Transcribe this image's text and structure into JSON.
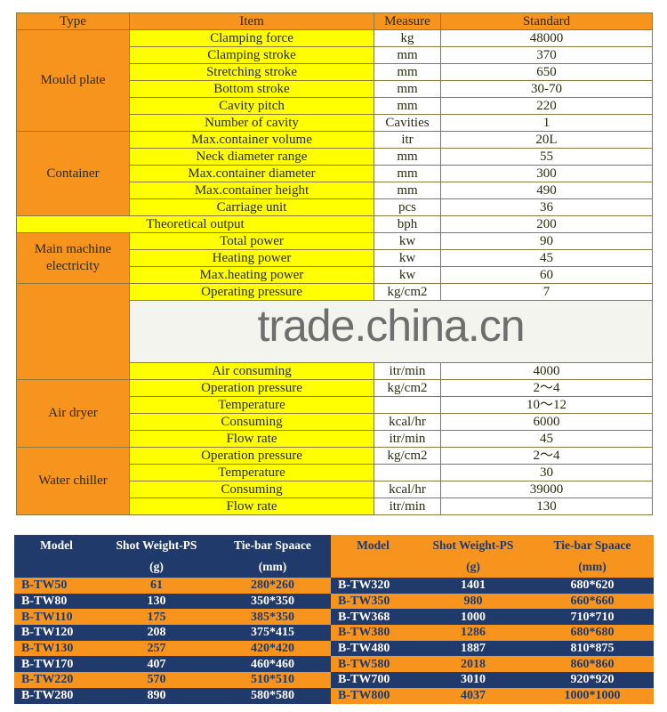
{
  "spec_table": {
    "headers": [
      "Type",
      "Item",
      "Measure",
      "Standard"
    ],
    "groups": [
      {
        "type": "Mould plate",
        "rows": [
          [
            "Clamping force",
            "kg",
            "48000"
          ],
          [
            "Clamping stroke",
            "mm",
            "370"
          ],
          [
            "Stretching stroke",
            "mm",
            "650"
          ],
          [
            "Bottom stroke",
            "mm",
            "30-70"
          ],
          [
            "Cavity pitch",
            "mm",
            "220"
          ],
          [
            "Number of cavity",
            "Cavities",
            "1"
          ]
        ]
      },
      {
        "type": "Container",
        "rows": [
          [
            "Max.container volume",
            "itr",
            "20L"
          ],
          [
            "Neck diameter range",
            "mm",
            "55"
          ],
          [
            "Max.container diameter",
            "mm",
            "300"
          ],
          [
            "Max.container height",
            "mm",
            "490"
          ],
          [
            "Carriage unit",
            "pcs",
            "36"
          ]
        ]
      },
      {
        "type": "",
        "full": true,
        "rows": [
          [
            "Theoretical output",
            "bph",
            "200"
          ]
        ]
      },
      {
        "type": "Main machine electricity",
        "rows": [
          [
            "Total power",
            "kw",
            "90"
          ],
          [
            "Heating power",
            "kw",
            "45"
          ],
          [
            "Max.heating power",
            "kw",
            "60"
          ]
        ]
      },
      {
        "type": "",
        "rows": [
          [
            "Operating pressure",
            "kg/cm2",
            "7"
          ],
          [
            "",
            "",
            ""
          ],
          [
            "Air consuming",
            "itr/min",
            "4000"
          ]
        ]
      },
      {
        "type": "Air dryer",
        "rows": [
          [
            "Operation pressure",
            "kg/cm2",
            "2～4"
          ],
          [
            "Temperature",
            "",
            "10～12"
          ],
          [
            "Consuming",
            "kcal/hr",
            "6000"
          ],
          [
            "Flow rate",
            "itr/min",
            "45"
          ]
        ]
      },
      {
        "type": "Water chiller",
        "rows": [
          [
            "Operation pressure",
            "kg/cm2",
            "2～4"
          ],
          [
            "Temperature",
            "",
            "30"
          ],
          [
            "Consuming",
            "kcal/hr",
            "39000"
          ],
          [
            "Flow rate",
            "itr/min",
            "130"
          ]
        ]
      }
    ]
  },
  "watermark": "trade.china.cn",
  "model_tables": {
    "headers": [
      [
        "Model",
        ""
      ],
      [
        "Shot Weight-PS",
        "(g)"
      ],
      [
        "Tie-bar Spaace",
        "(mm)"
      ]
    ],
    "left": [
      [
        "B-TW50",
        "61",
        "280*260"
      ],
      [
        "B-TW80",
        "130",
        "350*350"
      ],
      [
        "B-TW110",
        "175",
        "385*350"
      ],
      [
        "B-TW120",
        "208",
        "375*415"
      ],
      [
        "B-TW130",
        "257",
        "420*420"
      ],
      [
        "B-TW170",
        "407",
        "460*460"
      ],
      [
        "B-TW220",
        "570",
        "510*510"
      ],
      [
        "B-TW280",
        "890",
        "580*580"
      ]
    ],
    "right": [
      [
        "B-TW320",
        "1401",
        "680*620"
      ],
      [
        "B-TW350",
        "980",
        "660*660"
      ],
      [
        "B-TW368",
        "1000",
        "710*710"
      ],
      [
        "B-TW380",
        "1286",
        "680*680"
      ],
      [
        "B-TW480",
        "1887",
        "810*875"
      ],
      [
        "B-TW580",
        "2018",
        "860*860"
      ],
      [
        "B-TW700",
        "3010",
        "920*920"
      ],
      [
        "B-TW800",
        "4037",
        "1000*1000"
      ]
    ]
  },
  "colors": {
    "orange": "#f7941d",
    "yellow": "#ffff00",
    "navy": "#1f3a6b"
  }
}
